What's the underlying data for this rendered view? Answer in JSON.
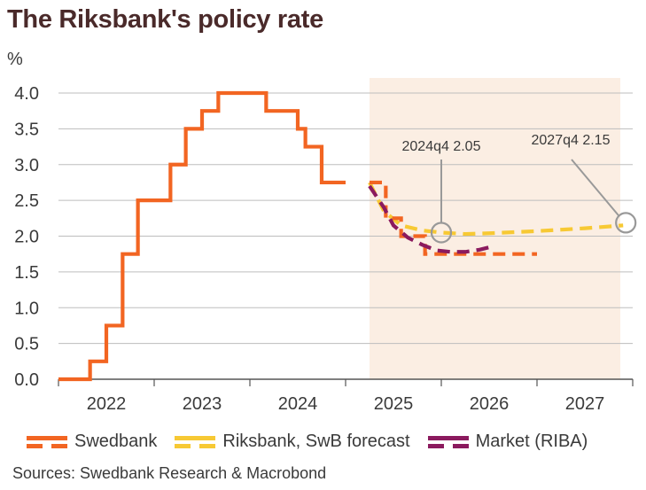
{
  "chart_data": {
    "type": "line",
    "title": "The Riksbank's policy rate",
    "ylabel": "%",
    "ylim": [
      0,
      4
    ],
    "yticks": [
      "0.0",
      "0.5",
      "1.0",
      "1.5",
      "2.0",
      "2.5",
      "3.0",
      "3.5",
      "4.0"
    ],
    "xlim": [
      2021.5,
      2027.5
    ],
    "xticks": [
      "2022",
      "2023",
      "2024",
      "2025",
      "2026",
      "2027"
    ],
    "grid": true,
    "legend_position": "bottom",
    "forecast_shading_start": 2024.75,
    "series": [
      {
        "name": "Swedbank",
        "color": "#f26522",
        "style": "step",
        "x": [
          2021.5,
          2021.83,
          2022.0,
          2022.17,
          2022.33,
          2022.5,
          2022.67,
          2022.83,
          2023.0,
          2023.17,
          2023.33,
          2023.67,
          2023.83,
          2024.0,
          2024.08,
          2024.25,
          2024.5
        ],
        "y": [
          0.0,
          0.25,
          0.75,
          1.75,
          2.5,
          2.5,
          3.0,
          3.5,
          3.75,
          4.0,
          4.0,
          3.75,
          3.75,
          3.5,
          3.25,
          2.75,
          2.75
        ]
      },
      {
        "name": "Swedbank forecast",
        "color": "#f26522",
        "style": "dashed-step",
        "x": [
          2024.75,
          2024.92,
          2025.08,
          2025.33,
          2025.5,
          2025.75,
          2026.0,
          2026.5
        ],
        "y": [
          2.75,
          2.25,
          2.0,
          1.75,
          1.75,
          1.75,
          1.75,
          1.75
        ]
      },
      {
        "name": "Riksbank, SwB forecast",
        "color": "#f7c934",
        "style": "dashed",
        "x": [
          2024.75,
          2024.9,
          2025.08,
          2025.3,
          2025.5,
          2025.75,
          2026.0,
          2026.5,
          2027.0,
          2027.4
        ],
        "y": [
          2.75,
          2.35,
          2.15,
          2.08,
          2.05,
          2.03,
          2.04,
          2.07,
          2.11,
          2.15
        ]
      },
      {
        "name": "Market (RIBA)",
        "color": "#8b1a5e",
        "style": "dashed",
        "x": [
          2024.75,
          2024.9,
          2025.0,
          2025.15,
          2025.3,
          2025.45,
          2025.6,
          2025.75,
          2025.9,
          2026.05
        ],
        "y": [
          2.7,
          2.4,
          2.15,
          1.98,
          1.88,
          1.8,
          1.78,
          1.78,
          1.81,
          1.86
        ]
      }
    ],
    "annotations": [
      {
        "label": "2024q4 2.05",
        "x": 2025.5,
        "y": 2.05
      },
      {
        "label": "2027q4 2.15",
        "x": 2027.4,
        "y": 2.15
      }
    ]
  },
  "legend": [
    {
      "label": "Swedbank",
      "color": "#f26522"
    },
    {
      "label": "Riksbank, SwB forecast",
      "color": "#f7c934"
    },
    {
      "label": "Market (RIBA)",
      "color": "#8b1a5e"
    }
  ],
  "source": "Sources: Swedbank Research & Macrobond"
}
